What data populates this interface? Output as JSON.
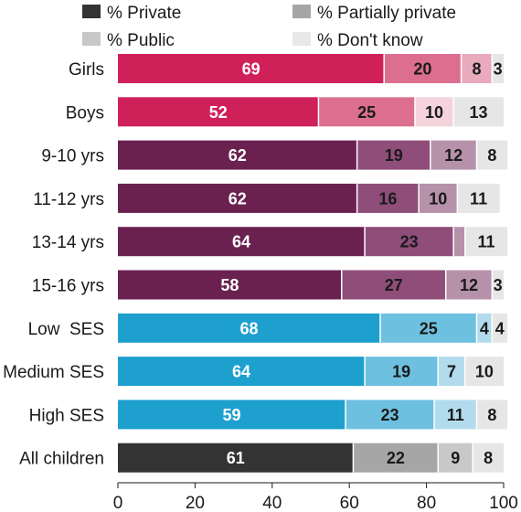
{
  "chart_data": {
    "type": "bar",
    "orientation": "horizontal",
    "stacked": true,
    "xlim": [
      0,
      100
    ],
    "xticks": [
      "0",
      "20",
      "40",
      "60",
      "80",
      "100"
    ],
    "legend": {
      "placement": "top",
      "entries": [
        {
          "label": "% Private",
          "color": "#333333"
        },
        {
          "label": "% Partially private",
          "color": "#a6a6a6"
        },
        {
          "label": "% Public",
          "color": "#c8c8c8"
        },
        {
          "label": "% Don't know",
          "color": "#e8e8e8"
        }
      ]
    },
    "series_names": [
      "% Private",
      "% Partially private",
      "% Public",
      "% Don't know"
    ],
    "categories": [
      "Girls",
      "Boys",
      "9-10 yrs",
      "11-12 yrs",
      "13-14 yrs",
      "15-16 yrs",
      "Low  SES",
      "Medium SES",
      "High SES",
      "All children"
    ],
    "rows": [
      {
        "values": [
          69,
          20,
          8,
          3
        ],
        "labels": [
          "69",
          "20",
          "8",
          "3"
        ],
        "colors": [
          "#d0205a",
          "#dc6f8f",
          "#eaaabd",
          "#e6e6e6"
        ]
      },
      {
        "values": [
          52,
          25,
          10,
          13
        ],
        "labels": [
          "52",
          "25",
          "10",
          "13"
        ],
        "colors": [
          "#d0205a",
          "#dc6f8f",
          "#f4d3dd",
          "#e6e6e6"
        ]
      },
      {
        "values": [
          62,
          19,
          12,
          8
        ],
        "labels": [
          "62",
          "19",
          "12",
          "8"
        ],
        "colors": [
          "#6b2150",
          "#8f4d79",
          "#b691aa",
          "#e6e6e6"
        ]
      },
      {
        "values": [
          62,
          16,
          10,
          11
        ],
        "labels": [
          "62",
          "16",
          "10",
          "11"
        ],
        "colors": [
          "#6b2150",
          "#8f4d79",
          "#b691aa",
          "#e6e6e6"
        ]
      },
      {
        "values": [
          64,
          23,
          3,
          11
        ],
        "labels": [
          "64",
          "23",
          "",
          "11"
        ],
        "colors": [
          "#6b2150",
          "#8f4d79",
          "#b691aa",
          "#e6e6e6"
        ]
      },
      {
        "values": [
          58,
          27,
          12,
          3
        ],
        "labels": [
          "58",
          "27",
          "12",
          "3"
        ],
        "colors": [
          "#6b2150",
          "#8f4d79",
          "#b691aa",
          "#e6e6e6"
        ]
      },
      {
        "values": [
          68,
          25,
          4,
          4
        ],
        "labels": [
          "68",
          "25",
          "4",
          "4"
        ],
        "colors": [
          "#1ea0cf",
          "#6ec0e0",
          "#b2dcee",
          "#e6e6e6"
        ]
      },
      {
        "values": [
          64,
          19,
          7,
          10
        ],
        "labels": [
          "64",
          "19",
          "7",
          "10"
        ],
        "colors": [
          "#1ea0cf",
          "#6ec0e0",
          "#b2dcee",
          "#e6e6e6"
        ]
      },
      {
        "values": [
          59,
          23,
          11,
          8
        ],
        "labels": [
          "59",
          "23",
          "11",
          "8"
        ],
        "colors": [
          "#1ea0cf",
          "#6ec0e0",
          "#b2dcee",
          "#e6e6e6"
        ]
      },
      {
        "values": [
          61,
          22,
          9,
          8
        ],
        "labels": [
          "61",
          "22",
          "9",
          "8"
        ],
        "colors": [
          "#333333",
          "#a6a6a6",
          "#c8c8c8",
          "#e6e6e6"
        ]
      }
    ],
    "label_text_colors": [
      "#ffffff",
      "#1a1a1a",
      "#1a1a1a",
      "#1a1a1a"
    ],
    "grid": false
  }
}
